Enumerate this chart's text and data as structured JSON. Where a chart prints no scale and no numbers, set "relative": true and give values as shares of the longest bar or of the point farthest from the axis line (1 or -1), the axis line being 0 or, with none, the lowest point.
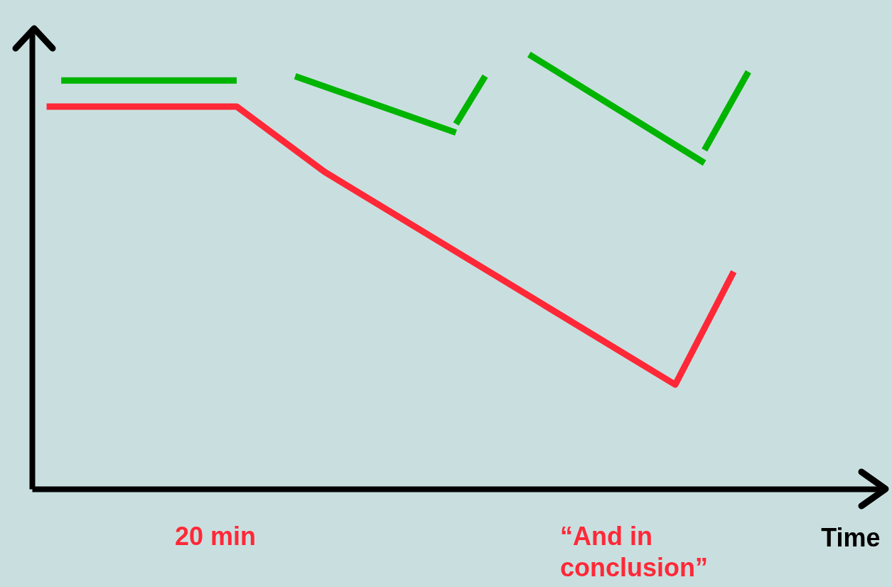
{
  "chart_data": {
    "type": "line",
    "relative": true,
    "marker": "none",
    "xlabel": "Time",
    "annotations": [
      "20 min",
      "“And in conclusion”"
    ],
    "categories": [
      null,
      null,
      null,
      null,
      null,
      null,
      null,
      null,
      null,
      null,
      null,
      null,
      null,
      null,
      null,
      null,
      null,
      null,
      null,
      null,
      null,
      null,
      null,
      null,
      null,
      null,
      null,
      null,
      null,
      null,
      null,
      null,
      null,
      null,
      null,
      null,
      null,
      null,
      null,
      null,
      null,
      null,
      null,
      null,
      null,
      null,
      null,
      null,
      null,
      null,
      null,
      null,
      null,
      null,
      null,
      null,
      null
    ],
    "series": [
      {
        "color": "#00b400",
        "values": [
          null,
          0.94,
          null,
          null,
          null,
          null,
          null,
          null,
          null,
          null,
          null,
          null,
          null,
          0.94,
          null,
          null,
          null,
          null,
          null,
          null,
          null,
          null,
          null,
          null,
          null,
          null,
          null,
          null,
          null,
          null,
          null,
          null,
          null,
          null,
          null,
          null,
          null,
          null,
          null,
          null,
          null,
          null,
          null,
          null,
          null,
          null,
          null,
          null,
          null,
          null,
          null,
          null,
          null,
          null,
          null,
          null,
          null
        ]
      },
      {
        "color": "#00b400",
        "values": [
          null,
          null,
          null,
          null,
          null,
          null,
          null,
          null,
          null,
          null,
          null,
          null,
          null,
          null,
          null,
          null,
          null,
          0.95,
          null,
          null,
          null,
          null,
          null,
          null,
          null,
          null,
          null,
          null,
          0.82,
          null,
          null,
          null,
          null,
          null,
          null,
          null,
          null,
          null,
          null,
          null,
          null,
          null,
          null,
          null,
          null,
          null,
          null,
          null,
          null,
          null,
          null,
          null,
          null,
          null,
          null,
          null,
          null
        ]
      },
      {
        "color": "#00b400",
        "values": [
          null,
          null,
          null,
          null,
          null,
          null,
          null,
          null,
          null,
          null,
          null,
          null,
          null,
          null,
          null,
          null,
          null,
          null,
          null,
          null,
          null,
          null,
          null,
          null,
          null,
          null,
          null,
          null,
          0.84,
          null,
          0.95,
          null,
          null,
          null,
          null,
          null,
          null,
          null,
          null,
          null,
          null,
          null,
          null,
          null,
          null,
          null,
          null,
          null,
          null,
          null,
          null,
          null,
          null,
          null,
          null,
          null,
          null
        ]
      },
      {
        "color": "#00b400",
        "values": [
          null,
          null,
          null,
          null,
          null,
          null,
          null,
          null,
          null,
          null,
          null,
          null,
          null,
          null,
          null,
          null,
          null,
          null,
          null,
          null,
          null,
          null,
          null,
          null,
          null,
          null,
          null,
          null,
          null,
          null,
          null,
          null,
          null,
          1.0,
          null,
          null,
          null,
          null,
          null,
          null,
          null,
          null,
          null,
          null,
          null,
          0.75,
          null,
          null,
          null,
          null,
          null,
          null,
          null,
          null,
          null,
          null,
          null
        ]
      },
      {
        "color": "#00b400",
        "values": [
          null,
          null,
          null,
          null,
          null,
          null,
          null,
          null,
          null,
          null,
          null,
          null,
          null,
          null,
          null,
          null,
          null,
          null,
          null,
          null,
          null,
          null,
          null,
          null,
          null,
          null,
          null,
          null,
          null,
          null,
          null,
          null,
          null,
          null,
          null,
          null,
          null,
          null,
          null,
          null,
          null,
          null,
          null,
          null,
          null,
          0.78,
          null,
          null,
          0.96,
          null,
          null,
          null,
          null,
          null,
          null,
          null,
          null
        ]
      },
      {
        "color": "#ff2837",
        "values": [
          0.88,
          null,
          null,
          null,
          null,
          null,
          null,
          null,
          null,
          null,
          null,
          null,
          null,
          0.88,
          null,
          null,
          null,
          null,
          null,
          0.73,
          null,
          null,
          null,
          null,
          null,
          null,
          null,
          null,
          null,
          null,
          null,
          null,
          null,
          null,
          null,
          null,
          null,
          null,
          null,
          null,
          null,
          null,
          null,
          0.24,
          null,
          null,
          null,
          0.5,
          null,
          null,
          null,
          null,
          null,
          null,
          null,
          null,
          null
        ]
      }
    ]
  }
}
